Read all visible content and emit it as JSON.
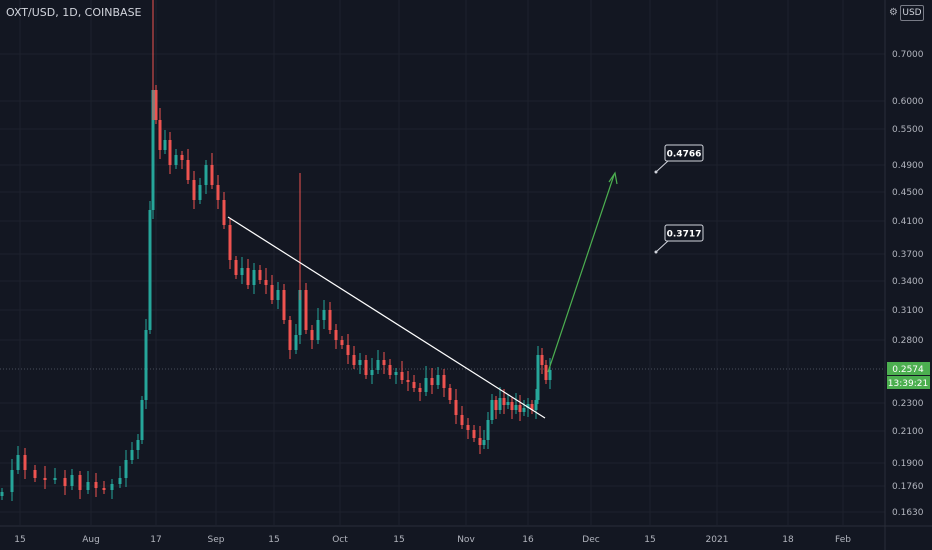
{
  "header": {
    "title": "OXT/USD, 1D, COINBASE"
  },
  "toolbar": {
    "currency_label": "USD"
  },
  "chart_data": {
    "type": "candlestick",
    "title": "OXT/USD, 1D, COINBASE",
    "y_scale": "log",
    "y_ticks": [
      "0.7000",
      "0.6000",
      "0.5500",
      "0.4900",
      "0.4500",
      "0.4100",
      "0.3700",
      "0.3400",
      "0.3100",
      "0.2800",
      "0.2300",
      "0.2100",
      "0.1900",
      "0.1760",
      "0.1630"
    ],
    "x_ticks": [
      "15",
      "Aug",
      "17",
      "Sep",
      "15",
      "Oct",
      "15",
      "Nov",
      "16",
      "Dec",
      "15",
      "2021",
      "18",
      "Feb"
    ],
    "last_price": "0.2574",
    "countdown": "13:39:21",
    "annotations": [
      "0.4766",
      "0.3717"
    ],
    "colors": {
      "up": "#26a69a",
      "down": "#ef5350",
      "trendline": "#ffffff",
      "projection": "#4caf50",
      "price_label": "#4caf50"
    }
  }
}
